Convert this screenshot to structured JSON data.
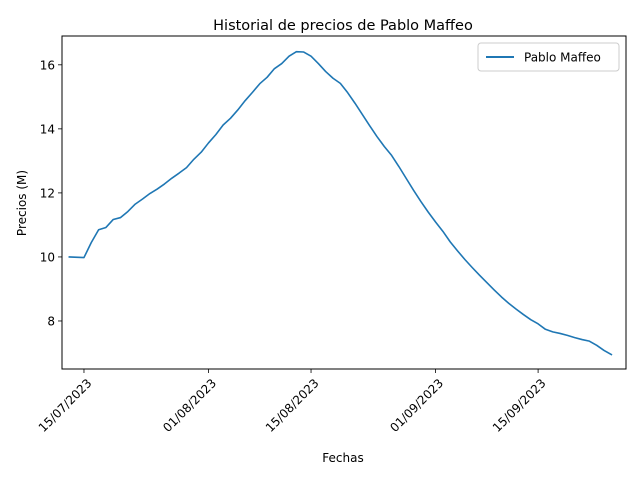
{
  "chart_data": {
    "type": "line",
    "title": "Historial de precios de Pablo Maffeo",
    "xlabel": "Fechas",
    "ylabel": "Precios (M)",
    "x_tick_labels": [
      "15/07/2023",
      "01/08/2023",
      "15/08/2023",
      "01/09/2023",
      "15/09/2023"
    ],
    "y_tick_labels": [
      "8",
      "10",
      "12",
      "14",
      "16"
    ],
    "xlim": [
      "2023-07-12",
      "2023-09-27"
    ],
    "ylim": [
      6.5,
      16.9
    ],
    "grid": false,
    "legend_position": "top-right",
    "series": [
      {
        "name": "Pablo Maffeo",
        "color": "#1f77b4",
        "x": [
          "2023-07-13",
          "2023-07-15",
          "2023-07-16",
          "2023-07-17",
          "2023-07-18",
          "2023-07-19",
          "2023-07-20",
          "2023-07-21",
          "2023-07-22",
          "2023-07-23",
          "2023-07-24",
          "2023-07-25",
          "2023-07-26",
          "2023-07-27",
          "2023-07-28",
          "2023-07-29",
          "2023-07-30",
          "2023-07-31",
          "2023-08-01",
          "2023-08-02",
          "2023-08-03",
          "2023-08-04",
          "2023-08-05",
          "2023-08-06",
          "2023-08-07",
          "2023-08-08",
          "2023-08-09",
          "2023-08-10",
          "2023-08-11",
          "2023-08-12",
          "2023-08-13",
          "2023-08-14",
          "2023-08-15",
          "2023-08-16",
          "2023-08-17",
          "2023-08-18",
          "2023-08-19",
          "2023-08-20",
          "2023-08-21",
          "2023-08-22",
          "2023-08-23",
          "2023-08-24",
          "2023-08-25",
          "2023-08-26",
          "2023-08-27",
          "2023-08-28",
          "2023-08-29",
          "2023-08-30",
          "2023-08-31",
          "2023-09-01",
          "2023-09-02",
          "2023-09-03",
          "2023-09-04",
          "2023-09-05",
          "2023-09-06",
          "2023-09-07",
          "2023-09-08",
          "2023-09-09",
          "2023-09-10",
          "2023-09-11",
          "2023-09-12",
          "2023-09-13",
          "2023-09-14",
          "2023-09-15",
          "2023-09-16",
          "2023-09-17",
          "2023-09-18",
          "2023-09-19",
          "2023-09-20",
          "2023-09-21",
          "2023-09-22",
          "2023-09-23",
          "2023-09-24",
          "2023-09-25"
        ],
        "y": [
          10.0,
          9.98,
          10.45,
          10.85,
          10.92,
          11.17,
          11.23,
          11.42,
          11.65,
          11.81,
          11.98,
          12.12,
          12.28,
          12.46,
          12.62,
          12.79,
          13.05,
          13.27,
          13.56,
          13.82,
          14.12,
          14.33,
          14.59,
          14.88,
          15.14,
          15.41,
          15.61,
          15.88,
          16.04,
          16.27,
          16.41,
          16.4,
          16.27,
          16.04,
          15.79,
          15.58,
          15.42,
          15.13,
          14.8,
          14.45,
          14.1,
          13.76,
          13.45,
          13.17,
          12.82,
          12.45,
          12.08,
          11.73,
          11.4,
          11.09,
          10.8,
          10.47,
          10.19,
          9.92,
          9.67,
          9.43,
          9.2,
          8.97,
          8.75,
          8.55,
          8.37,
          8.2,
          8.04,
          7.91,
          7.74,
          7.66,
          7.61,
          7.55,
          7.48,
          7.42,
          7.37,
          7.24,
          7.08,
          6.95
        ]
      }
    ]
  }
}
